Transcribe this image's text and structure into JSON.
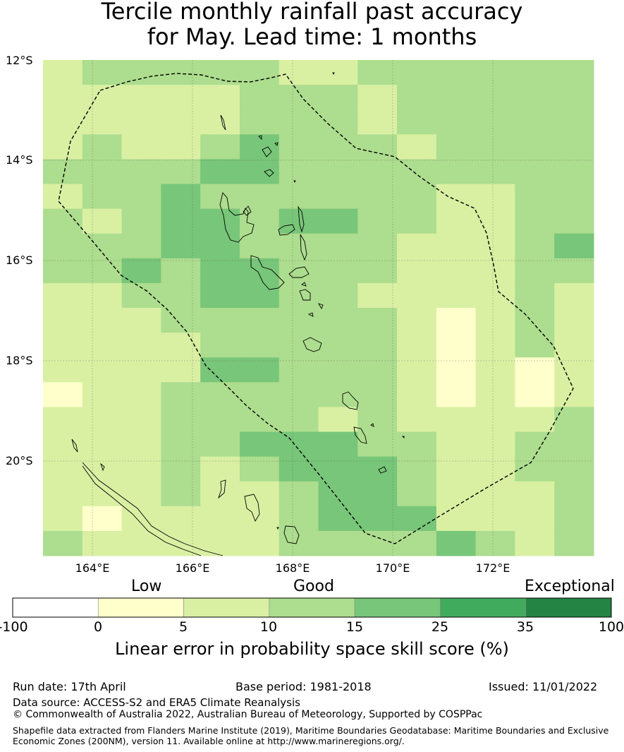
{
  "title_line1": "Tercile monthly rainfall past accuracy",
  "title_line2": "for May. Lead time: 1 months",
  "map": {
    "lat_labels": [
      "12°S",
      "14°S",
      "16°S",
      "18°S",
      "20°S"
    ],
    "lon_labels": [
      "164°E",
      "166°E",
      "168°E",
      "170°E",
      "172°E"
    ],
    "extent": {
      "lon_min": 163,
      "lon_max": 174,
      "lat_min": -21.9,
      "lat_max": -12
    }
  },
  "colorbar": {
    "category_labels": {
      "low": "Low",
      "good": "Good",
      "exceptional": "Exceptional"
    },
    "ticks": [
      "-100",
      "0",
      "5",
      "10",
      "15",
      "25",
      "35",
      "100"
    ],
    "colors": [
      "#ffffff",
      "#ffffcc",
      "#d9f0a3",
      "#addd8e",
      "#78c679",
      "#41ab5d",
      "#238443"
    ],
    "title": "Linear error in probability space skill score (%)"
  },
  "footer": {
    "run_date": "Run date: 17th April",
    "base_period": "Base period: 1981-2018",
    "issued": "Issued: 11/01/2022",
    "data_source": "Data source: ACCESS-S2 and ERA5 Climate Reanalysis",
    "copyright": "© Commonwealth of Australia 2022, Australian Bureau of Meteorology, Supported by COSPPac",
    "shapefile_line1": "Shapefile data extracted from Flanders Marine Institute (2019), Maritime Boundaries Geodatabase: Maritime Boundaries and Exclusive",
    "shapefile_line2": "Economic Zones (200NM), version 11. Available online at http://www.marineregions.org/."
  },
  "skill_grid": [
    [
      2,
      3,
      3,
      3,
      3,
      3,
      2,
      2,
      3,
      3,
      3,
      3,
      3,
      3
    ],
    [
      2,
      2,
      2,
      2,
      2,
      3,
      3,
      3,
      2,
      3,
      3,
      3,
      3,
      3
    ],
    [
      2,
      2,
      2,
      2,
      2,
      3,
      3,
      3,
      2,
      3,
      3,
      3,
      3,
      3
    ],
    [
      2,
      3,
      2,
      2,
      3,
      4,
      3,
      3,
      3,
      2,
      3,
      3,
      3,
      3
    ],
    [
      3,
      3,
      3,
      3,
      4,
      4,
      3,
      3,
      3,
      3,
      3,
      3,
      3,
      3
    ],
    [
      2,
      3,
      3,
      4,
      3,
      3,
      3,
      3,
      3,
      3,
      2,
      2,
      3,
      3
    ],
    [
      3,
      2,
      3,
      4,
      4,
      3,
      4,
      4,
      3,
      3,
      2,
      2,
      3,
      3
    ],
    [
      3,
      3,
      3,
      4,
      4,
      3,
      3,
      3,
      3,
      2,
      2,
      2,
      3,
      4
    ],
    [
      3,
      3,
      4,
      3,
      4,
      4,
      3,
      3,
      3,
      2,
      2,
      2,
      3,
      3
    ],
    [
      2,
      2,
      3,
      3,
      4,
      4,
      3,
      3,
      2,
      2,
      2,
      2,
      3,
      2
    ],
    [
      2,
      2,
      2,
      3,
      3,
      3,
      3,
      3,
      3,
      2,
      1,
      2,
      3,
      2
    ],
    [
      2,
      2,
      2,
      2,
      3,
      3,
      3,
      3,
      3,
      2,
      1,
      2,
      3,
      2
    ],
    [
      2,
      2,
      2,
      2,
      4,
      4,
      3,
      3,
      3,
      2,
      1,
      2,
      1,
      2
    ],
    [
      1,
      2,
      2,
      3,
      3,
      3,
      3,
      3,
      3,
      2,
      1,
      2,
      1,
      2
    ],
    [
      2,
      2,
      2,
      3,
      3,
      3,
      3,
      2,
      3,
      2,
      2,
      2,
      2,
      3
    ],
    [
      2,
      2,
      2,
      3,
      3,
      4,
      4,
      4,
      3,
      3,
      2,
      2,
      3,
      3
    ],
    [
      2,
      2,
      2,
      3,
      2,
      3,
      4,
      4,
      4,
      3,
      2,
      2,
      3,
      3
    ],
    [
      2,
      2,
      2,
      3,
      2,
      2,
      3,
      4,
      4,
      3,
      2,
      2,
      2,
      3
    ],
    [
      2,
      1,
      2,
      2,
      2,
      2,
      3,
      4,
      4,
      4,
      2,
      2,
      2,
      3
    ],
    [
      3,
      2,
      2,
      2,
      2,
      2,
      3,
      3,
      3,
      3,
      4,
      3,
      2,
      3
    ]
  ]
}
